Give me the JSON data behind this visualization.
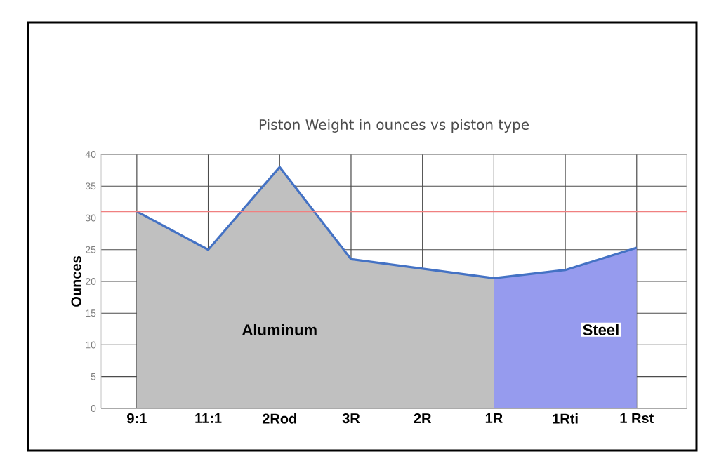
{
  "chart_data": {
    "type": "line",
    "title": "Piston Weight in ounces vs piston type",
    "ylabel": "Ounces",
    "categories": [
      "9:1",
      "11:1",
      "2Rod",
      "3R",
      "2R",
      "1R",
      "1Rti",
      "1 Rst"
    ],
    "series": [
      {
        "type": "area",
        "color": "#c0c0c0",
        "values": [
          31,
          25,
          38,
          23.5,
          22,
          20.5,
          null,
          null
        ]
      },
      {
        "type": "area",
        "color": "#969bee",
        "values": [
          null,
          null,
          null,
          null,
          null,
          20.5,
          21.8,
          25.3
        ]
      },
      {
        "color": "#4472c4",
        "values": [
          31,
          25,
          38,
          23.5,
          22,
          20.5,
          21.8,
          25.3
        ]
      }
    ],
    "ylim": [
      0,
      40
    ],
    "yticks": [
      0,
      5,
      10,
      15,
      20,
      25,
      30,
      35,
      40
    ],
    "grid": true,
    "marker": "none",
    "line_style": "solid",
    "ref_lines": [
      {
        "axis": "y",
        "value": 31,
        "color": "#f08080"
      }
    ],
    "annotations": [
      "Aluminum",
      "Steel"
    ]
  }
}
